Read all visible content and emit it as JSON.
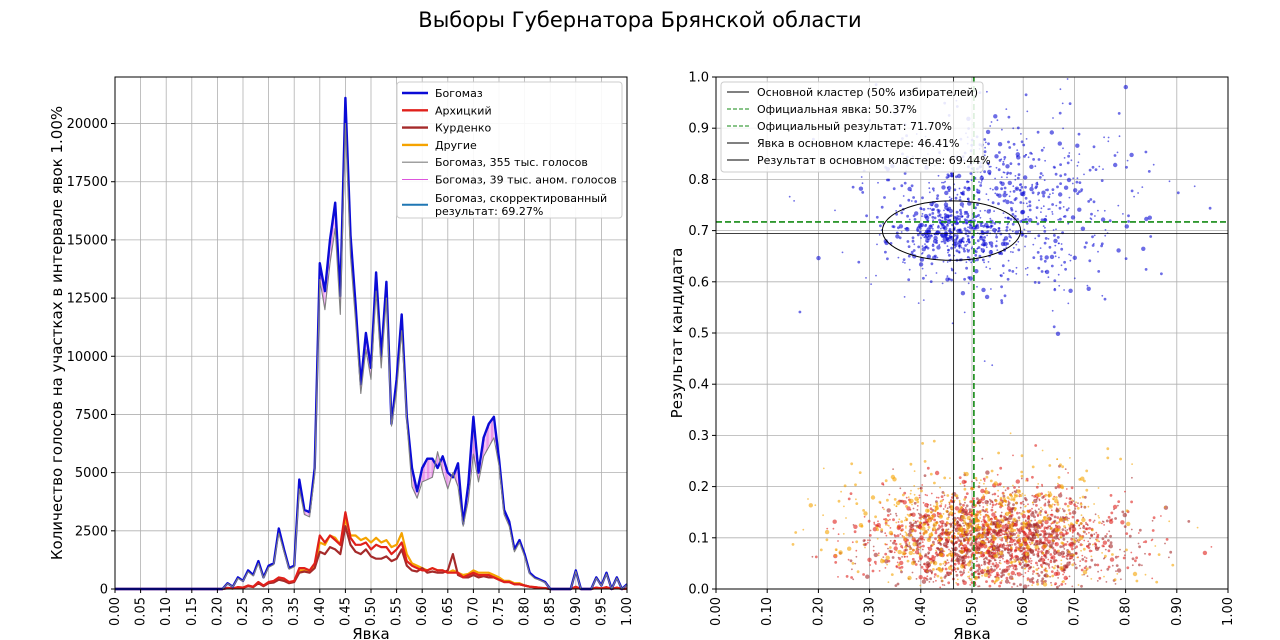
{
  "figure": {
    "suptitle": "Выборы Губернатора Брянской области"
  },
  "colors": {
    "bogomaz": "#0b0bd6",
    "arkhitsky": "#e0201b",
    "kurdenko": "#a52a2a",
    "others": "#f5a300",
    "gray": "#808080",
    "anomaly": "#dd55dd",
    "corrected": "#1f77b4",
    "cluster": "#000000",
    "official": "#138a13"
  },
  "chart_data": [
    {
      "type": "line",
      "xlabel": "Явка",
      "ylabel": "Количество голосов на участках в интервале явок 1.00%",
      "xlim": [
        0,
        1
      ],
      "ylim": [
        0,
        22000
      ],
      "xticks": [
        "0.00",
        "0.05",
        "0.10",
        "0.15",
        "0.20",
        "0.25",
        "0.30",
        "0.35",
        "0.40",
        "0.45",
        "0.50",
        "0.55",
        "0.60",
        "0.65",
        "0.70",
        "0.75",
        "0.80",
        "0.85",
        "0.90",
        "0.95",
        "1.00"
      ],
      "yticks": [
        "0",
        "2500",
        "5000",
        "7500",
        "10000",
        "12500",
        "15000",
        "17500",
        "20000"
      ],
      "grid": true,
      "legend_position": "top-right",
      "x": [
        0,
        0.01,
        0.02,
        0.03,
        0.04,
        0.05,
        0.06,
        0.07,
        0.08,
        0.09,
        0.1,
        0.11,
        0.12,
        0.13,
        0.14,
        0.15,
        0.16,
        0.17,
        0.18,
        0.19,
        0.2,
        0.21,
        0.22,
        0.23,
        0.24,
        0.25,
        0.26,
        0.27,
        0.28,
        0.29,
        0.3,
        0.31,
        0.32,
        0.33,
        0.34,
        0.35,
        0.36,
        0.37,
        0.38,
        0.39,
        0.4,
        0.41,
        0.42,
        0.43,
        0.44,
        0.45,
        0.46,
        0.47,
        0.48,
        0.49,
        0.5,
        0.51,
        0.52,
        0.53,
        0.54,
        0.55,
        0.56,
        0.57,
        0.58,
        0.59,
        0.6,
        0.61,
        0.62,
        0.63,
        0.64,
        0.65,
        0.66,
        0.67,
        0.68,
        0.69,
        0.7,
        0.71,
        0.72,
        0.73,
        0.74,
        0.75,
        0.76,
        0.77,
        0.78,
        0.79,
        0.8,
        0.81,
        0.82,
        0.83,
        0.84,
        0.85,
        0.86,
        0.87,
        0.88,
        0.89,
        0.9,
        0.91,
        0.92,
        0.93,
        0.94,
        0.95,
        0.96,
        0.97,
        0.98,
        0.99,
        1.0
      ],
      "series": [
        {
          "name": "Богомаз",
          "color_key": "bogomaz",
          "width": 2.4,
          "values": [
            0,
            0,
            0,
            0,
            0,
            0,
            0,
            0,
            0,
            0,
            0,
            0,
            0,
            0,
            0,
            0,
            0,
            0,
            0,
            0,
            0,
            0,
            250,
            100,
            500,
            350,
            800,
            600,
            1200,
            500,
            1000,
            1100,
            2600,
            1700,
            900,
            1000,
            4700,
            3400,
            3300,
            5200,
            14000,
            12800,
            15000,
            16600,
            12600,
            21100,
            15200,
            12200,
            8800,
            11000,
            9500,
            13600,
            10000,
            13200,
            7100,
            9000,
            11800,
            7400,
            5200,
            4200,
            5200,
            5600,
            5600,
            5200,
            5700,
            5000,
            4800,
            5400,
            2800,
            4500,
            7400,
            5000,
            6500,
            7100,
            7400,
            5600,
            3400,
            2900,
            1700,
            2100,
            1500,
            700,
            500,
            400,
            300,
            0,
            0,
            0,
            0,
            0,
            800,
            0,
            0,
            0,
            500,
            150,
            700,
            0,
            500,
            0,
            200
          ]
        },
        {
          "name": "Архицкий",
          "color_key": "arkhitsky",
          "width": 2.2,
          "values": [
            0,
            0,
            0,
            0,
            0,
            0,
            0,
            0,
            0,
            0,
            0,
            0,
            0,
            0,
            0,
            0,
            0,
            0,
            0,
            0,
            0,
            0,
            50,
            20,
            80,
            60,
            150,
            100,
            300,
            150,
            300,
            350,
            500,
            450,
            300,
            350,
            900,
            900,
            800,
            1100,
            2300,
            2000,
            2300,
            2100,
            1900,
            3300,
            2200,
            1900,
            1900,
            2000,
            1700,
            1900,
            1800,
            1800,
            1500,
            1700,
            2000,
            1200,
            1000,
            900,
            800,
            800,
            900,
            800,
            800,
            700,
            700,
            700,
            500,
            600,
            700,
            600,
            600,
            600,
            500,
            400,
            300,
            300,
            200,
            200,
            150,
            100,
            80,
            50,
            40,
            0,
            0,
            0,
            0,
            0,
            100,
            0,
            0,
            0,
            60,
            20,
            80,
            0,
            60,
            0,
            20
          ]
        },
        {
          "name": "Курденко",
          "color_key": "kurdenko",
          "width": 2.2,
          "values": [
            0,
            0,
            0,
            0,
            0,
            0,
            0,
            0,
            0,
            0,
            0,
            0,
            0,
            0,
            0,
            0,
            0,
            0,
            0,
            0,
            0,
            0,
            30,
            20,
            60,
            50,
            120,
            80,
            250,
            120,
            250,
            280,
            400,
            350,
            250,
            300,
            700,
            750,
            700,
            900,
            1600,
            1500,
            1800,
            1700,
            1500,
            2700,
            1900,
            1600,
            1500,
            1700,
            1400,
            1300,
            1300,
            1400,
            1200,
            1300,
            1700,
            1000,
            800,
            750,
            900,
            700,
            750,
            700,
            700,
            800,
            1500,
            600,
            500,
            500,
            600,
            500,
            550,
            500,
            500,
            400,
            300,
            300,
            200,
            200,
            150,
            100,
            70,
            50,
            30,
            0,
            0,
            0,
            0,
            0,
            80,
            0,
            0,
            0,
            50,
            20,
            70,
            0,
            50,
            0,
            20
          ]
        },
        {
          "name": "Другие",
          "color_key": "others",
          "width": 2.2,
          "values": [
            0,
            0,
            0,
            0,
            0,
            0,
            0,
            0,
            0,
            0,
            0,
            0,
            0,
            0,
            0,
            0,
            0,
            0,
            0,
            0,
            0,
            0,
            40,
            20,
            70,
            60,
            140,
            90,
            280,
            130,
            280,
            300,
            450,
            400,
            280,
            320,
            800,
            800,
            750,
            1000,
            2000,
            1900,
            2300,
            2200,
            1900,
            3000,
            2300,
            2300,
            2100,
            2200,
            2000,
            2200,
            2000,
            2100,
            1800,
            1900,
            2400,
            1500,
            1100,
            1000,
            900,
            800,
            900,
            800,
            800,
            700,
            800,
            700,
            600,
            650,
            800,
            700,
            700,
            700,
            600,
            500,
            350,
            350,
            250,
            250,
            150,
            100,
            80,
            50,
            30,
            0,
            0,
            0,
            0,
            0,
            90,
            0,
            0,
            0,
            50,
            20,
            70,
            0,
            50,
            0,
            20
          ]
        },
        {
          "name": "Богомаз, 355 тыс. голосов",
          "color_key": "gray",
          "width": 1.1,
          "values": [
            0,
            0,
            0,
            0,
            0,
            0,
            0,
            0,
            0,
            0,
            0,
            0,
            0,
            0,
            0,
            0,
            0,
            0,
            0,
            0,
            0,
            0,
            230,
            90,
            460,
            330,
            740,
            560,
            1100,
            470,
            930,
            1050,
            2400,
            1600,
            850,
            950,
            4300,
            3200,
            3100,
            4900,
            13300,
            12000,
            14000,
            15500,
            11800,
            20000,
            14300,
            11500,
            8400,
            10300,
            9000,
            12800,
            9500,
            12500,
            7000,
            8500,
            11100,
            7200,
            4400,
            3900,
            4600,
            4700,
            4800,
            5900,
            5000,
            4300,
            5000,
            4400,
            2700,
            3800,
            5800,
            4600,
            5700,
            6100,
            6500,
            5300,
            3200,
            2700,
            1600,
            2000,
            1400,
            650,
            450,
            380,
            280,
            0,
            0,
            0,
            0,
            0,
            750,
            0,
            0,
            0,
            470,
            140,
            650,
            0,
            470,
            0,
            180
          ]
        }
      ],
      "anomaly_label": "Богомаз, 39 тыс. аном. голосов",
      "corrected_label": "Богомаз, скорректированный результат: 69.27%"
    },
    {
      "type": "scatter",
      "xlabel": "Явка",
      "ylabel": "Результат кандидата",
      "xlim": [
        0,
        1
      ],
      "ylim": [
        0,
        1
      ],
      "xticks": [
        "0.00",
        "0.10",
        "0.20",
        "0.30",
        "0.40",
        "0.50",
        "0.60",
        "0.70",
        "0.80",
        "0.90",
        "1.00"
      ],
      "yticks": [
        "0.0",
        "0.1",
        "0.2",
        "0.3",
        "0.4",
        "0.5",
        "0.6",
        "0.7",
        "0.8",
        "0.9",
        "1.0"
      ],
      "grid": true,
      "legend_position": "top-left",
      "legend": [
        {
          "label": "Основной кластер (50% избирателей)",
          "style": "solid",
          "color_key": "cluster"
        },
        {
          "label": "Официальная явка: 50.37%",
          "style": "dashed",
          "color_key": "official"
        },
        {
          "label": "Официальный результат: 71.70%",
          "style": "dashed",
          "color_key": "official"
        },
        {
          "label": "Явка в основном кластере: 46.41%",
          "style": "solid",
          "color_key": "cluster"
        },
        {
          "label": "Результат в основном кластере: 69.44%",
          "style": "solid",
          "color_key": "cluster"
        }
      ],
      "official_turnout": 0.5037,
      "official_result": 0.717,
      "cluster_turnout": 0.4641,
      "cluster_result": 0.6944,
      "cluster_ellipse": {
        "cx": 0.46,
        "cy": 0.7,
        "rx": 0.135,
        "ry": 0.058
      },
      "point_groups": [
        {
          "color_key": "bogomaz",
          "count": 750,
          "x_mean": 0.56,
          "x_sd": 0.13,
          "y_mean": 0.75,
          "y_sd": 0.09
        },
        {
          "color_key": "bogomaz",
          "count": 350,
          "x_mean": 0.46,
          "x_sd": 0.05,
          "y_mean": 0.7,
          "y_sd": 0.03
        },
        {
          "color_key": "arkhitsky",
          "count": 1100,
          "x_mean": 0.53,
          "x_sd": 0.12,
          "y_mean": 0.1,
          "y_sd": 0.05
        },
        {
          "color_key": "kurdenko",
          "count": 900,
          "x_mean": 0.55,
          "x_sd": 0.12,
          "y_mean": 0.09,
          "y_sd": 0.05
        },
        {
          "color_key": "others",
          "count": 700,
          "x_mean": 0.52,
          "x_sd": 0.13,
          "y_mean": 0.12,
          "y_sd": 0.06
        }
      ]
    }
  ]
}
